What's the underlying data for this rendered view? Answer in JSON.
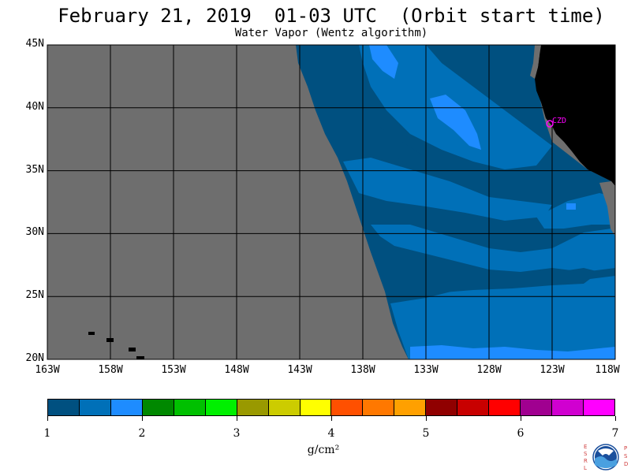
{
  "title": "February 21, 2019  01-03 UTC  (Orbit start time)",
  "subtitle": "Water Vapor (Wentz algorithm)",
  "map": {
    "lat_labels": [
      "45N",
      "40N",
      "35N",
      "30N",
      "25N",
      "20N"
    ],
    "lon_labels": [
      "163W",
      "158W",
      "153W",
      "148W",
      "143W",
      "138W",
      "133W",
      "128W",
      "123W",
      "118W"
    ],
    "lat_range": [
      20,
      45
    ],
    "lon_range": [
      -163,
      -118
    ],
    "station_label": "CZD",
    "colors": {
      "no_data": "#6e6e6e",
      "land": "#000000",
      "station": "#ff00ff",
      "grid": "#000000"
    }
  },
  "colorbar": {
    "tick_labels": [
      "1",
      "2",
      "3",
      "4",
      "5",
      "6",
      "7"
    ],
    "range": [
      1,
      7
    ],
    "colors": [
      "#005080",
      "#0070b8",
      "#1e8cff",
      "#008800",
      "#00c000",
      "#00f000",
      "#999900",
      "#cccc00",
      "#ffff00",
      "#ff5000",
      "#ff7800",
      "#ffa000",
      "#900000",
      "#c80000",
      "#ff0000",
      "#a00090",
      "#d000d0",
      "#ff00ff"
    ],
    "units": "g/cm²"
  },
  "logo": {
    "left_letters": [
      "E",
      "S",
      "R",
      "L"
    ],
    "right_letters": [
      "P",
      "S",
      "D"
    ],
    "name": "noaa-logo"
  }
}
